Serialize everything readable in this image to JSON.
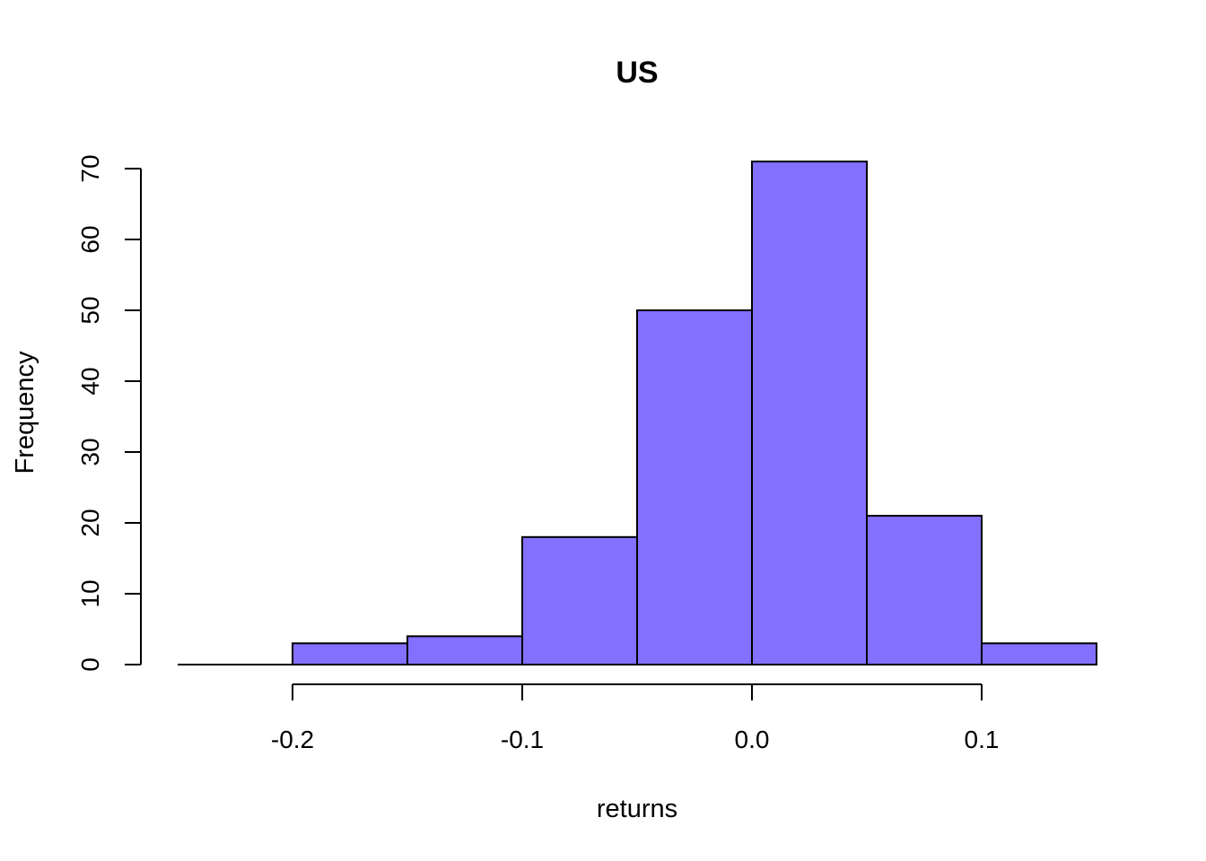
{
  "chart_data": {
    "type": "bar",
    "title": "US",
    "xlabel": "returns",
    "ylabel": "Frequency",
    "bins": [
      {
        "x0": -0.25,
        "x1": -0.2,
        "count": 0
      },
      {
        "x0": -0.2,
        "x1": -0.15,
        "count": 3
      },
      {
        "x0": -0.15,
        "x1": -0.1,
        "count": 4
      },
      {
        "x0": -0.1,
        "x1": -0.05,
        "count": 18
      },
      {
        "x0": -0.05,
        "x1": 0.0,
        "count": 50
      },
      {
        "x0": 0.0,
        "x1": 0.05,
        "count": 71
      },
      {
        "x0": 0.05,
        "x1": 0.1,
        "count": 21
      },
      {
        "x0": 0.1,
        "x1": 0.15,
        "count": 3
      }
    ],
    "xlim": [
      -0.25,
      0.15
    ],
    "ylim": [
      0,
      70
    ],
    "x_ticks": [
      {
        "value": -0.2,
        "label": "-0.2"
      },
      {
        "value": -0.1,
        "label": "-0.1"
      },
      {
        "value": 0.0,
        "label": "0.0"
      },
      {
        "value": 0.1,
        "label": "0.1"
      }
    ],
    "y_ticks": [
      {
        "value": 0,
        "label": "0"
      },
      {
        "value": 10,
        "label": "10"
      },
      {
        "value": 20,
        "label": "20"
      },
      {
        "value": 30,
        "label": "30"
      },
      {
        "value": 40,
        "label": "40"
      },
      {
        "value": 50,
        "label": "50"
      },
      {
        "value": 60,
        "label": "60"
      },
      {
        "value": 70,
        "label": "70"
      }
    ],
    "bar_color": "#8470FF",
    "grid": false,
    "legend": "none"
  }
}
